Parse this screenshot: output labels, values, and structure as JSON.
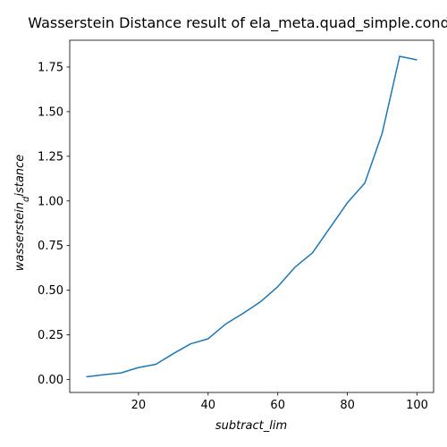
{
  "chart_data": {
    "type": "line",
    "title": "Wasserstein Distance result of ela_meta.quad_simple.cond",
    "xlabel": "subtract_lim",
    "ylabel_main": "wasserstein",
    "ylabel_sub": "d",
    "ylabel_rest": "istance",
    "xlim": [
      0.25,
      104.75
    ],
    "ylim": [
      -0.0725,
      1.9
    ],
    "xticks": [
      20,
      40,
      60,
      80,
      100
    ],
    "yticks": [
      0.0,
      0.25,
      0.5,
      0.75,
      1.0,
      1.25,
      1.5,
      1.75
    ],
    "ytick_labels": [
      "0.00",
      "0.25",
      "0.50",
      "0.75",
      "1.00",
      "1.25",
      "1.50",
      "1.75"
    ],
    "grid": false,
    "series": [
      {
        "color": "#1f77b4",
        "x": [
          5,
          10,
          15,
          20,
          25,
          30,
          35,
          40,
          45,
          50,
          55,
          60,
          65,
          70,
          75,
          80,
          85,
          90,
          95,
          100
        ],
        "y": [
          0.015,
          0.027,
          0.037,
          0.067,
          0.085,
          0.145,
          0.2,
          0.228,
          0.31,
          0.37,
          0.435,
          0.52,
          0.63,
          0.71,
          0.85,
          0.99,
          1.1,
          1.38,
          1.81,
          1.79
        ]
      }
    ]
  }
}
